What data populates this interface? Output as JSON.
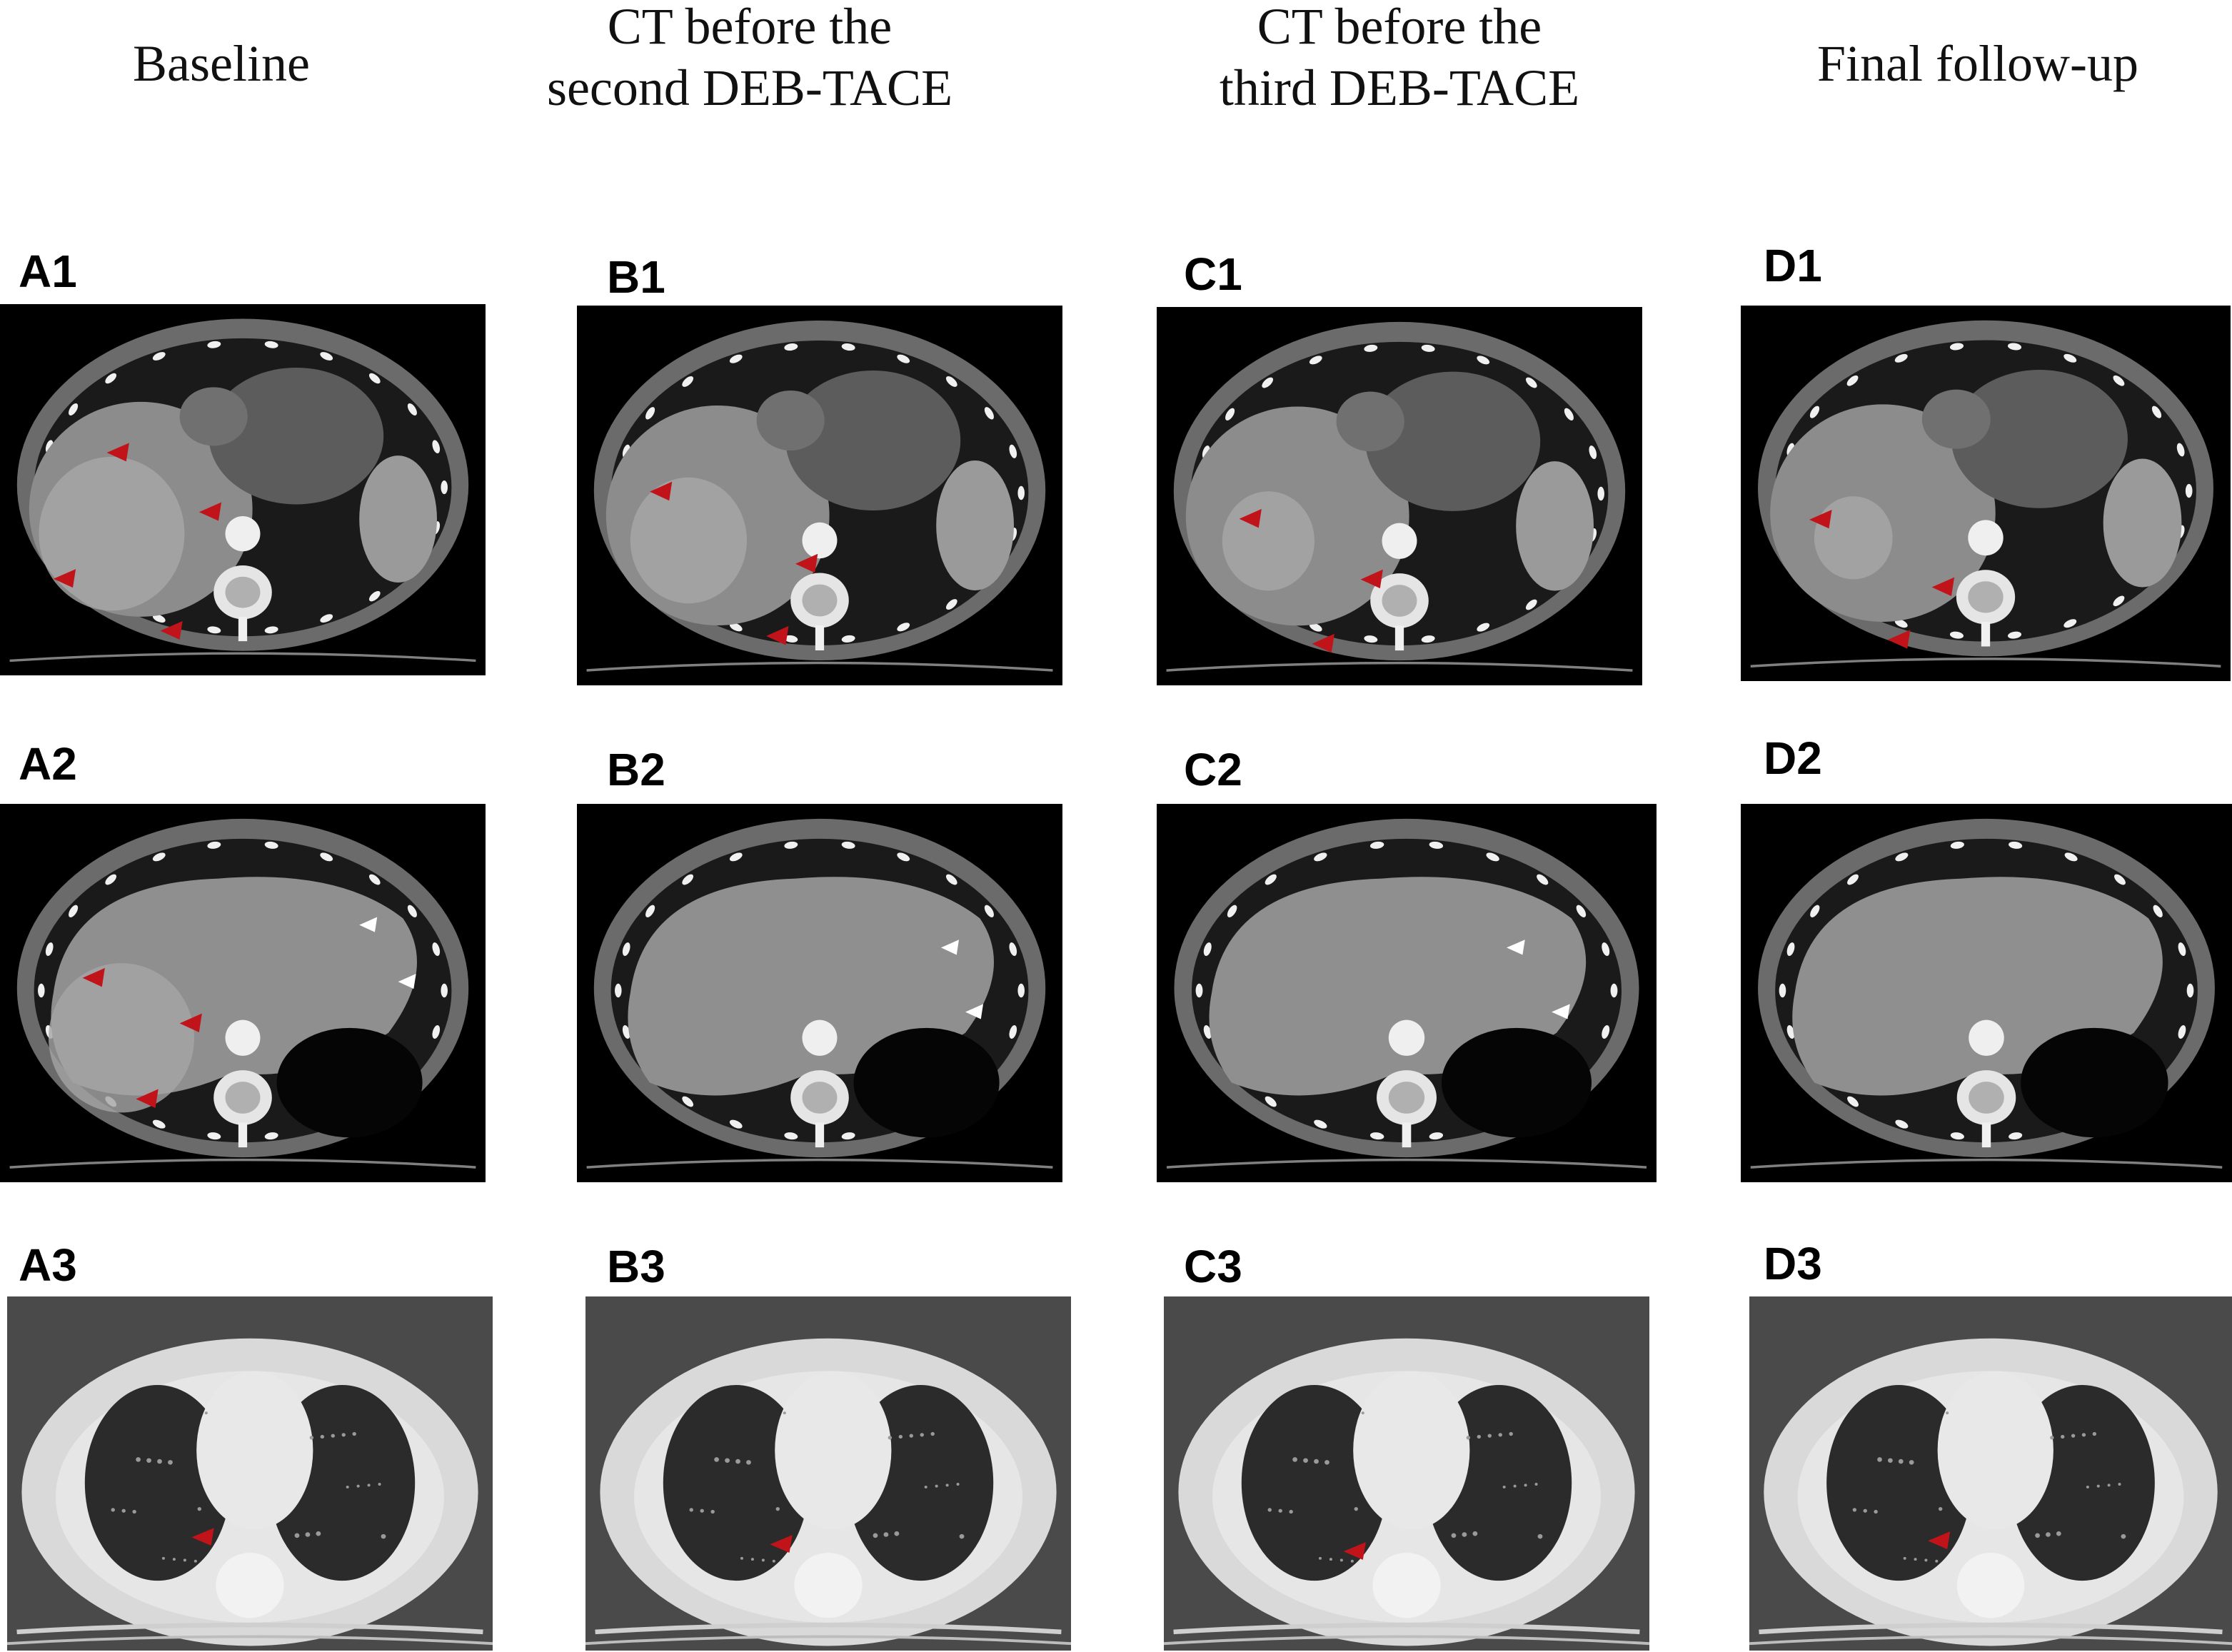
{
  "columns": [
    {
      "title": "Baseline"
    },
    {
      "title": "CT before the\nsecond DEB-TACE"
    },
    {
      "title": "CT before the\nthird DEB-TACE"
    },
    {
      "title": "Final follow-up"
    }
  ],
  "panels": [
    {
      "label": "A1",
      "kind": "abdomen",
      "lesion": true,
      "tumor": "large",
      "arrows": [
        [
          0.22,
          0.4
        ],
        [
          0.41,
          0.56
        ],
        [
          0.11,
          0.74
        ],
        [
          0.33,
          0.88
        ]
      ],
      "white": []
    },
    {
      "label": "B1",
      "kind": "abdomen",
      "lesion": true,
      "tumor": "medium",
      "arrows": [
        [
          0.15,
          0.49
        ],
        [
          0.45,
          0.68
        ],
        [
          0.39,
          0.87
        ]
      ],
      "white": []
    },
    {
      "label": "C1",
      "kind": "abdomen",
      "lesion": true,
      "tumor": "small",
      "arrows": [
        [
          0.17,
          0.56
        ],
        [
          0.42,
          0.72
        ],
        [
          0.32,
          0.89
        ]
      ],
      "white": []
    },
    {
      "label": "D1",
      "kind": "abdomen",
      "lesion": true,
      "tumor": "smaller",
      "arrows": [
        [
          0.14,
          0.57
        ],
        [
          0.39,
          0.75
        ],
        [
          0.3,
          0.89
        ]
      ],
      "white": []
    },
    {
      "label": "A2",
      "kind": "liver",
      "lesion": true,
      "tumor": "large",
      "arrows": [
        [
          0.17,
          0.46
        ],
        [
          0.37,
          0.58
        ],
        [
          0.28,
          0.78
        ]
      ],
      "white": [
        [
          0.74,
          0.32
        ],
        [
          0.82,
          0.47
        ]
      ]
    },
    {
      "label": "B2",
      "kind": "liver",
      "lesion": false,
      "tumor": "none",
      "arrows": [],
      "white": [
        [
          0.75,
          0.38
        ],
        [
          0.8,
          0.55
        ]
      ]
    },
    {
      "label": "C2",
      "kind": "liver",
      "lesion": false,
      "tumor": "none",
      "arrows": [],
      "white": [
        [
          0.7,
          0.38
        ],
        [
          0.79,
          0.55
        ]
      ]
    },
    {
      "label": "D2",
      "kind": "liver",
      "lesion": false,
      "tumor": "none",
      "arrows": [],
      "white": []
    },
    {
      "label": "A3",
      "kind": "lung",
      "arrows": [
        [
          0.38,
          0.68
        ]
      ],
      "white": []
    },
    {
      "label": "B3",
      "kind": "lung",
      "arrows": [
        [
          0.38,
          0.7
        ]
      ],
      "white": []
    },
    {
      "label": "C3",
      "kind": "lung",
      "arrows": [
        [
          0.37,
          0.72
        ]
      ],
      "white": []
    },
    {
      "label": "D3",
      "kind": "lung",
      "arrows": [
        [
          0.37,
          0.69
        ]
      ],
      "white": []
    }
  ],
  "colors": {
    "arrow_red": "#c0141a",
    "arrow_white": "#ffffff"
  }
}
